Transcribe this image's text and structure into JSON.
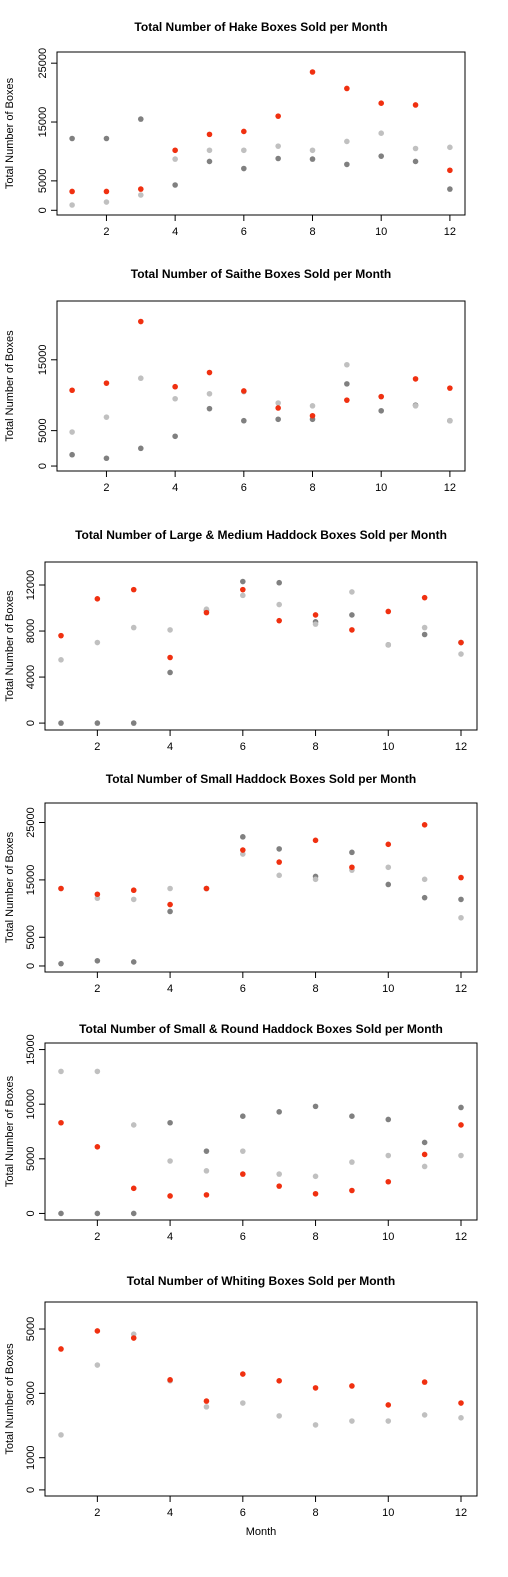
{
  "chart_data": [
    {
      "type": "scatter",
      "title": "Total Number of Hake Boxes Sold per Month",
      "ylabel": "Total Number of Boxes",
      "x": [
        1,
        2,
        3,
        4,
        5,
        6,
        7,
        8,
        9,
        10,
        11,
        12
      ],
      "series": [
        {
          "color": "#808080",
          "values": [
            12200,
            12200,
            15500,
            4300,
            8300,
            7100,
            8800,
            8700,
            7800,
            9200,
            8300,
            3600
          ]
        },
        {
          "color": "#c0c0c0",
          "values": [
            900,
            1400,
            2600,
            8700,
            10200,
            10200,
            10900,
            10200,
            11700,
            13100,
            10500,
            10700
          ]
        },
        {
          "color": "#f03010",
          "values": [
            3200,
            3200,
            3600,
            10200,
            12900,
            13400,
            16000,
            23500,
            20700,
            18200,
            17900,
            6800
          ]
        }
      ],
      "xlim": [
        0.56,
        12.44
      ],
      "xticks": [
        2,
        4,
        6,
        8,
        10,
        12
      ],
      "ylim": [
        -800,
        26900
      ],
      "yticks": [
        0,
        5000,
        15000,
        25000
      ]
    },
    {
      "type": "scatter",
      "title": "Total Number of Saithe Boxes Sold per Month",
      "ylabel": "Total Number of Boxes",
      "x": [
        1,
        2,
        3,
        4,
        5,
        6,
        7,
        8,
        9,
        10,
        11,
        12
      ],
      "series": [
        {
          "color": "#808080",
          "values": [
            1600,
            1100,
            2500,
            4200,
            8100,
            6400,
            6600,
            6600,
            11600,
            7800,
            8600,
            6400
          ]
        },
        {
          "color": "#c0c0c0",
          "values": [
            4800,
            6900,
            12400,
            9500,
            10200,
            10500,
            8900,
            8500,
            14300,
            9800,
            8500,
            6400
          ]
        },
        {
          "color": "#f03010",
          "values": [
            10700,
            11700,
            20400,
            11200,
            13200,
            10600,
            8200,
            7100,
            9300,
            9800,
            12300,
            11000
          ]
        }
      ],
      "xlim": [
        0.56,
        12.44
      ],
      "xticks": [
        2,
        4,
        6,
        8,
        10,
        12
      ],
      "ylim": [
        -700,
        23300
      ],
      "yticks": [
        0,
        5000,
        15000
      ]
    },
    {
      "type": "scatter",
      "title": "Total Number of Large & Medium Haddock Boxes Sold per Month",
      "ylabel": "Total Number of Boxes",
      "x": [
        1,
        2,
        3,
        4,
        5,
        6,
        7,
        8,
        9,
        10,
        11,
        12
      ],
      "series": [
        {
          "color": "#808080",
          "values": [
            0,
            0,
            0,
            4400,
            9800,
            12300,
            12200,
            8800,
            9400,
            6800,
            7700,
            7000
          ]
        },
        {
          "color": "#c0c0c0",
          "values": [
            5500,
            7000,
            8300,
            8100,
            9900,
            11100,
            10300,
            8600,
            11400,
            6800,
            8300,
            6000
          ]
        },
        {
          "color": "#f03010",
          "values": [
            7600,
            10800,
            11600,
            5700,
            9600,
            11600,
            8900,
            9400,
            8100,
            9700,
            10900,
            7000
          ]
        }
      ],
      "xlim": [
        0.56,
        12.44
      ],
      "xticks": [
        2,
        4,
        6,
        8,
        10,
        12
      ],
      "ylim": [
        -600,
        14000
      ],
      "yticks": [
        0,
        4000,
        8000,
        12000
      ]
    },
    {
      "type": "scatter",
      "title": "Total Number of Small Haddock Boxes Sold per Month",
      "ylabel": "Total Number of Boxes",
      "x": [
        1,
        2,
        3,
        4,
        5,
        6,
        7,
        8,
        9,
        10,
        11,
        12
      ],
      "series": [
        {
          "color": "#808080",
          "values": [
            400,
            900,
            700,
            9500,
            13500,
            22500,
            20400,
            15600,
            19800,
            14200,
            11900,
            11600
          ]
        },
        {
          "color": "#c0c0c0",
          "values": [
            13500,
            11800,
            11600,
            13500,
            13500,
            19500,
            15800,
            15100,
            16700,
            17200,
            15100,
            8400
          ]
        },
        {
          "color": "#f03010",
          "values": [
            13500,
            12500,
            13200,
            10700,
            13500,
            20200,
            18100,
            21900,
            17200,
            21200,
            24600,
            15400
          ]
        }
      ],
      "xlim": [
        0.56,
        12.44
      ],
      "xticks": [
        2,
        4,
        6,
        8,
        10,
        12
      ],
      "ylim": [
        -1050,
        28400
      ],
      "yticks": [
        0,
        5000,
        15000,
        25000
      ]
    },
    {
      "type": "scatter",
      "title": "Total Number of Small & Round Haddock Boxes Sold per Month",
      "ylabel": "Total Number of Boxes",
      "x": [
        1,
        2,
        3,
        4,
        5,
        6,
        7,
        8,
        9,
        10,
        11,
        12
      ],
      "series": [
        {
          "color": "#808080",
          "values": [
            0,
            0,
            0,
            8300,
            5700,
            8900,
            9300,
            9800,
            8900,
            8600,
            6500,
            9700
          ]
        },
        {
          "color": "#c0c0c0",
          "values": [
            13000,
            13000,
            8100,
            4800,
            3900,
            5700,
            3600,
            3400,
            4700,
            5300,
            4300,
            5300
          ]
        },
        {
          "color": "#f03010",
          "values": [
            8300,
            6100,
            2300,
            1600,
            1700,
            3600,
            2500,
            1800,
            2100,
            2900,
            5400,
            8100
          ]
        }
      ],
      "xlim": [
        0.56,
        12.44
      ],
      "xticks": [
        2,
        4,
        6,
        8,
        10,
        12
      ],
      "ylim": [
        -600,
        15600
      ],
      "yticks": [
        0,
        5000,
        10000,
        15000
      ]
    },
    {
      "type": "scatter",
      "title": "Total Number of Whiting Boxes Sold per Month",
      "ylabel": "Total Number of Boxes",
      "xlabel": "Month",
      "x": [
        1,
        2,
        3,
        4,
        5,
        6,
        7,
        8,
        9,
        10,
        11,
        12
      ],
      "series": [
        {
          "color": "#c0c0c0",
          "values": [
            1710,
            3880,
            4840,
            3390,
            2580,
            2700,
            2300,
            2020,
            2140,
            2140,
            2330,
            2240
          ]
        },
        {
          "color": "#f03010",
          "values": [
            4380,
            4940,
            4720,
            3420,
            2760,
            3600,
            3390,
            3170,
            3230,
            2640,
            3350,
            2700
          ]
        }
      ],
      "xlim": [
        0.56,
        12.44
      ],
      "xticks": [
        2,
        4,
        6,
        8,
        10,
        12
      ],
      "ylim": [
        -190,
        5840
      ],
      "yticks": [
        0,
        1000,
        3000,
        5000
      ]
    }
  ]
}
